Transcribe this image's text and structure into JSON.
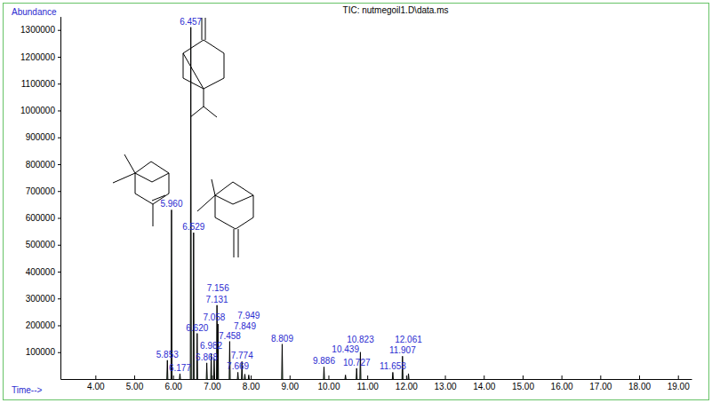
{
  "chart_data": {
    "type": "peaks",
    "title": "TIC: nutmegoil1.D\\data.ms",
    "x_label": "Time-->",
    "y_label": "Abundance",
    "color": "#000000",
    "x": [
      5.853,
      5.96,
      6.177,
      6.457,
      6.529,
      6.62,
      6.868,
      6.982,
      7.058,
      7.131,
      7.156,
      7.458,
      7.669,
      7.774,
      7.849,
      7.949,
      8.809,
      9.886,
      10.439,
      10.727,
      10.823,
      11.658,
      11.907,
      12.061
    ],
    "values": [
      70000,
      630000,
      20000,
      1310000,
      545000,
      170000,
      60000,
      95000,
      75000,
      275000,
      205000,
      140000,
      25000,
      65000,
      18000,
      15000,
      130000,
      45000,
      15000,
      40000,
      100000,
      25000,
      85000,
      20000
    ],
    "labels": [
      "5.853",
      "5.960",
      "6.177",
      "6.457",
      "6.529",
      "6.620",
      "6.868",
      "6.982",
      "7.058",
      "7.131",
      "7.156",
      "7.458",
      "7.669",
      "7.774",
      "7.849",
      "7.949",
      "8.809",
      "9.886",
      "10.439",
      "10.727",
      "10.823",
      "11.658",
      "11.907",
      "12.061"
    ],
    "xlim": [
      3.1,
      19.35
    ],
    "ylim": [
      0,
      1350000
    ],
    "xticks": [
      {
        "value": 4,
        "label": "4.00"
      },
      {
        "value": 5,
        "label": "5.00"
      },
      {
        "value": 6,
        "label": "6.00"
      },
      {
        "value": 7,
        "label": "7.00"
      },
      {
        "value": 8,
        "label": "8.00"
      },
      {
        "value": 9,
        "label": "9.00"
      },
      {
        "value": 10,
        "label": "10.00"
      },
      {
        "value": 11,
        "label": "11.00"
      },
      {
        "value": 12,
        "label": "12.00"
      },
      {
        "value": 13,
        "label": "13.00"
      },
      {
        "value": 14,
        "label": "14.00"
      },
      {
        "value": 15,
        "label": "15.00"
      },
      {
        "value": 16,
        "label": "16.00"
      },
      {
        "value": 17,
        "label": "17.00"
      },
      {
        "value": 18,
        "label": "18.00"
      },
      {
        "value": 19,
        "label": "19.00"
      }
    ],
    "yticks": [
      100000,
      200000,
      300000,
      400000,
      500000,
      600000,
      700000,
      800000,
      900000,
      1000000,
      1100000,
      1200000,
      1300000
    ]
  }
}
